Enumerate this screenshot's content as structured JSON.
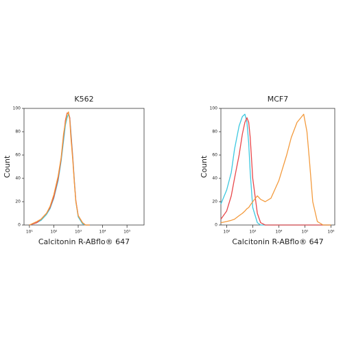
{
  "chart_data": [
    {
      "type": "line",
      "title": "K562",
      "xlabel": "Calcitonin R-ABflo® 647",
      "ylabel": "Count",
      "xscale": "log",
      "xlim": [
        6,
        500000
      ],
      "ylim": [
        0,
        100
      ],
      "xticks": [
        {
          "value": 10,
          "label": "10¹"
        },
        {
          "value": 100,
          "label": "10²"
        },
        {
          "value": 1000,
          "label": "10³"
        },
        {
          "value": 10000,
          "label": "10⁴"
        },
        {
          "value": 100000,
          "label": "10⁵"
        }
      ],
      "yticks": [
        0,
        20,
        40,
        60,
        80,
        100
      ],
      "x": [
        10,
        20,
        30,
        50,
        70,
        100,
        150,
        200,
        250,
        300,
        350,
        400,
        450,
        500,
        600,
        700,
        800,
        1000,
        1500,
        2000,
        3000
      ],
      "series": [
        {
          "color": "#3cc8e0",
          "values": [
            0,
            2,
            4,
            9,
            14,
            23,
            38,
            55,
            72,
            86,
            92,
            95,
            92,
            80,
            58,
            37,
            20,
            7,
            1,
            0,
            0
          ]
        },
        {
          "color": "#e8474a",
          "values": [
            0,
            2,
            5,
            10,
            15,
            24,
            40,
            57,
            76,
            90,
            96,
            96,
            92,
            78,
            57,
            36,
            21,
            8,
            2,
            0,
            0
          ]
        },
        {
          "color": "#f39a3c",
          "values": [
            0,
            3,
            5,
            10,
            16,
            26,
            42,
            58,
            78,
            88,
            95,
            97,
            90,
            75,
            55,
            35,
            20,
            8,
            2,
            0,
            0
          ]
        }
      ]
    },
    {
      "type": "line",
      "title": "MCF7",
      "xlabel": "Calcitonin R-ABflo® 647",
      "ylabel": "Count",
      "xscale": "log",
      "xlim": [
        60,
        1400000
      ],
      "ylim": [
        0,
        100
      ],
      "xticks": [
        {
          "value": 100,
          "label": "10²"
        },
        {
          "value": 1000,
          "label": "10³"
        },
        {
          "value": 10000,
          "label": "10⁴"
        },
        {
          "value": 100000,
          "label": "10⁵"
        },
        {
          "value": 1000000,
          "label": "10⁶"
        }
      ],
      "yticks": [
        0,
        20,
        40,
        60,
        80,
        100
      ],
      "x": [
        60,
        100,
        150,
        200,
        300,
        400,
        500,
        600,
        700,
        800,
        1000,
        1500,
        2000,
        3000,
        5000,
        10000,
        20000,
        30000,
        50000,
        70000,
        90000,
        120000,
        150000,
        200000,
        300000,
        500000,
        1000000
      ],
      "series": [
        {
          "color": "#3cc8e0",
          "values": [
            18,
            30,
            45,
            65,
            85,
            93,
            95,
            88,
            70,
            45,
            15,
            2,
            0,
            0,
            0,
            0,
            0,
            0,
            0,
            0,
            0,
            0,
            0,
            0,
            0,
            0,
            0
          ]
        },
        {
          "color": "#e8474a",
          "values": [
            5,
            12,
            25,
            40,
            60,
            78,
            88,
            92,
            88,
            75,
            40,
            10,
            2,
            0,
            0,
            0,
            0,
            0,
            0,
            0,
            0,
            0,
            0,
            0,
            0,
            0,
            0
          ]
        },
        {
          "color": "#f39a3c",
          "values": [
            2,
            3,
            4,
            5,
            8,
            10,
            12,
            14,
            15,
            17,
            20,
            25,
            22,
            20,
            23,
            38,
            60,
            75,
            88,
            92,
            95,
            80,
            55,
            20,
            3,
            0,
            0
          ]
        }
      ]
    }
  ]
}
